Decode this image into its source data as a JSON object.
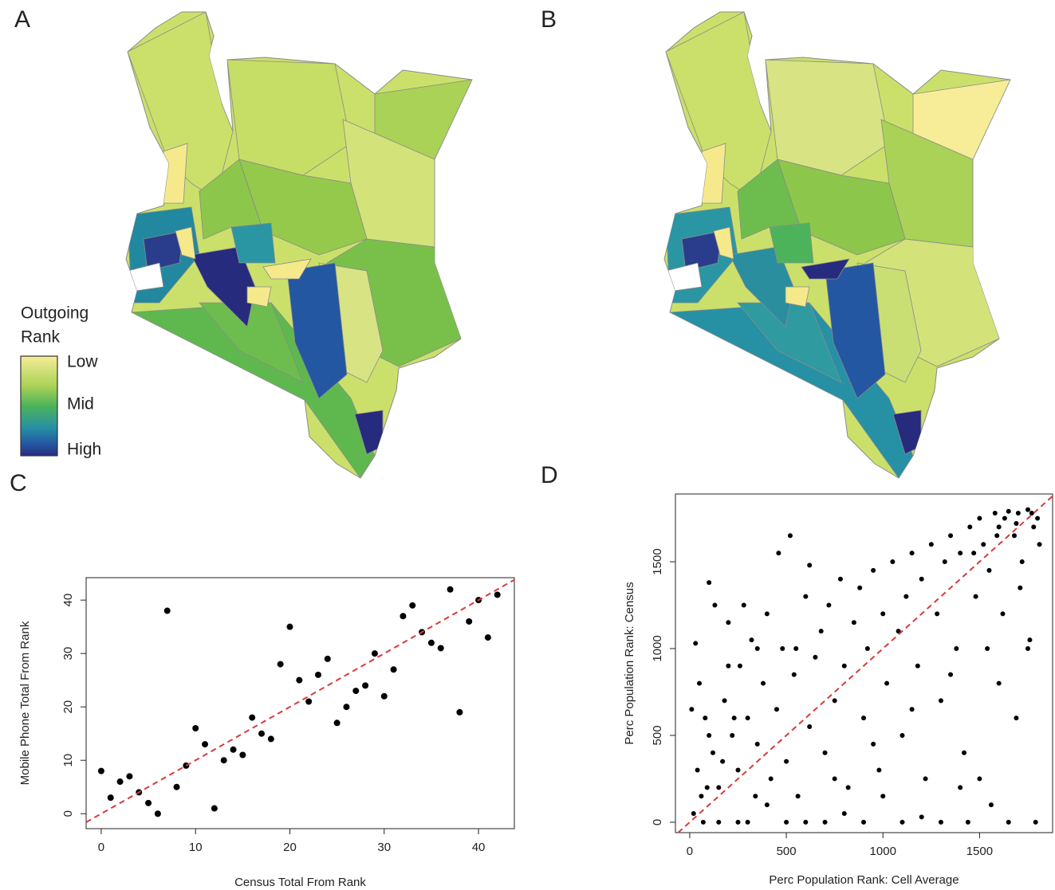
{
  "panel_labels": [
    "A",
    "B",
    "C",
    "D"
  ],
  "map_legend": {
    "title_lines": [
      "Outgoing",
      "Rank"
    ],
    "levels": [
      "Low",
      "Mid",
      "High"
    ]
  },
  "chart_data": [
    {
      "type": "scatter",
      "xlabel": "Census Total From Rank",
      "ylabel": "Mobile Phone Total From Rank",
      "x": [
        0,
        1,
        2,
        3,
        4,
        5,
        6,
        7,
        8,
        9,
        10,
        11,
        12,
        13,
        14,
        15,
        16,
        17,
        18,
        19,
        20,
        21,
        22,
        23,
        24,
        25,
        26,
        27,
        28,
        29,
        30,
        31,
        32,
        33,
        34,
        35,
        36,
        37,
        38,
        39,
        40,
        41,
        42
      ],
      "values": [
        8,
        3,
        6,
        7,
        4,
        2,
        0,
        38,
        5,
        9,
        16,
        13,
        1,
        10,
        12,
        11,
        18,
        15,
        14,
        28,
        35,
        25,
        21,
        26,
        29,
        17,
        20,
        23,
        24,
        30,
        22,
        27,
        37,
        39,
        34,
        32,
        31,
        42,
        19,
        36,
        40,
        33,
        41
      ],
      "color": "#000000",
      "identity_line": true,
      "identity_line_color": "#d93a3a",
      "xlim": [
        -1.6,
        43.8
      ],
      "ylim": [
        -2.8,
        44.2
      ],
      "xticks": [
        0,
        10,
        20,
        30,
        40
      ],
      "yticks": [
        0,
        10,
        20,
        30,
        40
      ]
    },
    {
      "type": "scatter",
      "xlabel": "Perc Population Rank: Cell Average",
      "ylabel": "Perc Population Rank: Census",
      "x": [
        20,
        40,
        60,
        80,
        100,
        30,
        120,
        150,
        180,
        200,
        220,
        250,
        260,
        300,
        320,
        350,
        380,
        400,
        420,
        450,
        480,
        500,
        520,
        540,
        560,
        600,
        620,
        650,
        680,
        700,
        720,
        750,
        780,
        800,
        820,
        850,
        880,
        900,
        920,
        950,
        980,
        1000,
        1020,
        1050,
        1080,
        1100,
        1120,
        1150,
        1180,
        1200,
        1220,
        1250,
        1280,
        1300,
        1320,
        1350,
        1380,
        1400,
        1420,
        1450,
        1480,
        1500,
        1520,
        1550,
        1580,
        1600,
        1620,
        1650,
        1680,
        1700,
        1720,
        1750,
        1780,
        1800,
        1810,
        1760,
        1690,
        1560,
        1440,
        1300,
        1100,
        900,
        700,
        500,
        300,
        150,
        1790,
        1650,
        1200,
        1000,
        800,
        600,
        400,
        250,
        1400,
        1600,
        1500,
        1750,
        1350,
        1150,
        950,
        750,
        550,
        350,
        200,
        100,
        50,
        10,
        70,
        130,
        280,
        460,
        620,
        170,
        340,
        230,
        90,
        1710,
        1540,
        1630,
        1770,
        1590,
        1470,
        1690
      ],
      "values": [
        50,
        300,
        150,
        600,
        1380,
        1030,
        400,
        200,
        700,
        1150,
        500,
        300,
        900,
        600,
        1050,
        450,
        800,
        1200,
        250,
        650,
        1000,
        350,
        1650,
        850,
        150,
        1300,
        550,
        950,
        1100,
        400,
        1250,
        700,
        1400,
        900,
        200,
        1150,
        1350,
        600,
        1000,
        1450,
        300,
        1200,
        800,
        1500,
        1100,
        500,
        1300,
        1550,
        900,
        1400,
        250,
        1600,
        1200,
        700,
        1500,
        1650,
        1000,
        1550,
        400,
        1700,
        1300,
        1750,
        1600,
        1450,
        1780,
        1700,
        1200,
        1790,
        1650,
        1780,
        1500,
        1800,
        1700,
        1750,
        1600,
        1050,
        600,
        100,
        0,
        0,
        0,
        0,
        0,
        0,
        0,
        0,
        0,
        0,
        30,
        150,
        50,
        0,
        100,
        0,
        200,
        800,
        250,
        1000,
        850,
        650,
        450,
        250,
        1000,
        1000,
        900,
        500,
        800,
        650,
        0,
        1250,
        1250,
        1550,
        1480,
        350,
        150,
        600,
        200,
        1350,
        1000,
        1750,
        1780,
        1650,
        1550,
        1720
      ],
      "color": "#000000",
      "identity_line": true,
      "identity_line_color": "#d93a3a",
      "xlim": [
        -74,
        1878
      ],
      "ylim": [
        -60,
        1890
      ],
      "xticks": [
        0,
        500,
        1000,
        1500
      ],
      "yticks": [
        0,
        500,
        1000,
        1500
      ]
    }
  ]
}
